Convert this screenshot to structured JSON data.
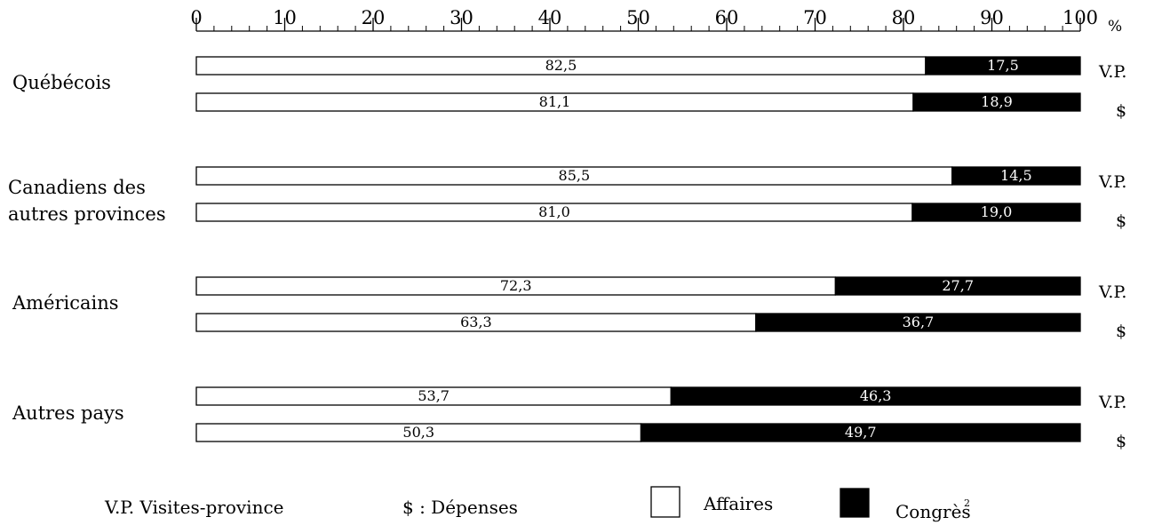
{
  "chart_data": {
    "type": "bar",
    "orientation": "horizontal",
    "stacked": true,
    "unit_label": "%",
    "xlim": [
      0,
      100
    ],
    "x_ticks": [
      "0",
      "10",
      "20",
      "30",
      "40",
      "50",
      "60",
      "70",
      "80",
      "90",
      "100"
    ],
    "series": [
      {
        "key": "affaires",
        "name": "Affaires",
        "color": "#ffffff"
      },
      {
        "key": "congres",
        "name": "Congrès",
        "footnote": "2",
        "color": "#000000"
      }
    ],
    "groups": [
      {
        "label_lines": [
          "Québécois"
        ],
        "bars": [
          {
            "measure": "V.P.",
            "affaires": 82.5,
            "affaires_label": "82,5",
            "congres": 17.5,
            "congres_label": "17,5"
          },
          {
            "measure": "$",
            "affaires": 81.1,
            "affaires_label": "81,1",
            "congres": 18.9,
            "congres_label": "18,9"
          }
        ]
      },
      {
        "label_lines": [
          "Canadiens des",
          "autres provinces"
        ],
        "bars": [
          {
            "measure": "V.P.",
            "affaires": 85.5,
            "affaires_label": "85,5",
            "congres": 14.5,
            "congres_label": "14,5"
          },
          {
            "measure": "$",
            "affaires": 81.0,
            "affaires_label": "81,0",
            "congres": 19.0,
            "congres_label": "19,0"
          }
        ]
      },
      {
        "label_lines": [
          "Américains"
        ],
        "bars": [
          {
            "measure": "V.P.",
            "affaires": 72.3,
            "affaires_label": "72,3",
            "congres": 27.7,
            "congres_label": "27,7"
          },
          {
            "measure": "$",
            "affaires": 63.3,
            "affaires_label": "63,3",
            "congres": 36.7,
            "congres_label": "36,7"
          }
        ]
      },
      {
        "label_lines": [
          "Autres pays"
        ],
        "bars": [
          {
            "measure": "V.P.",
            "affaires": 53.7,
            "affaires_label": "53,7",
            "congres": 46.3,
            "congres_label": "46,3"
          },
          {
            "measure": "$",
            "affaires": 50.3,
            "affaires_label": "50,3",
            "congres": 49.7,
            "congres_label": "49,7"
          }
        ]
      }
    ],
    "legend": {
      "vp_text": "V.P. Visites-province",
      "dollar_text": "$ : Dépenses",
      "affaires_text": "Affaires",
      "congres_text": "Congrès",
      "congres_sup": "2"
    }
  }
}
